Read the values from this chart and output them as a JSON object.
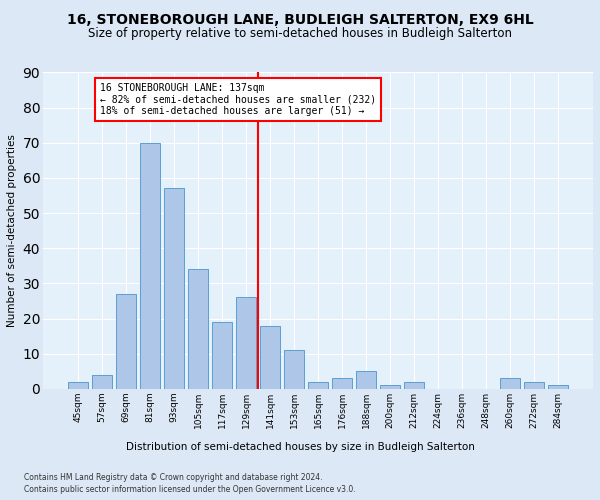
{
  "title": "16, STONEBOROUGH LANE, BUDLEIGH SALTERTON, EX9 6HL",
  "subtitle": "Size of property relative to semi-detached houses in Budleigh Salterton",
  "xlabel": "Distribution of semi-detached houses by size in Budleigh Salterton",
  "ylabel": "Number of semi-detached properties",
  "footnote1": "Contains HM Land Registry data © Crown copyright and database right 2024.",
  "footnote2": "Contains public sector information licensed under the Open Government Licence v3.0.",
  "bar_labels": [
    "45sqm",
    "57sqm",
    "69sqm",
    "81sqm",
    "93sqm",
    "105sqm",
    "117sqm",
    "129sqm",
    "141sqm",
    "153sqm",
    "165sqm",
    "176sqm",
    "188sqm",
    "200sqm",
    "212sqm",
    "224sqm",
    "236sqm",
    "248sqm",
    "260sqm",
    "272sqm",
    "284sqm"
  ],
  "bar_values": [
    2,
    4,
    27,
    70,
    57,
    34,
    19,
    26,
    18,
    11,
    2,
    3,
    5,
    1,
    2,
    0,
    0,
    0,
    3,
    2,
    1
  ],
  "bar_color": "#aec6e8",
  "bar_edgecolor": "#5a9fd4",
  "annotation_text": "16 STONEBOROUGH LANE: 137sqm\n← 82% of semi-detached houses are smaller (232)\n18% of semi-detached houses are larger (51) →",
  "ylim": [
    0,
    90
  ],
  "background_color": "#dce8f5",
  "plot_background": "#e4f0fa",
  "title_fontsize": 10,
  "subtitle_fontsize": 8.5
}
